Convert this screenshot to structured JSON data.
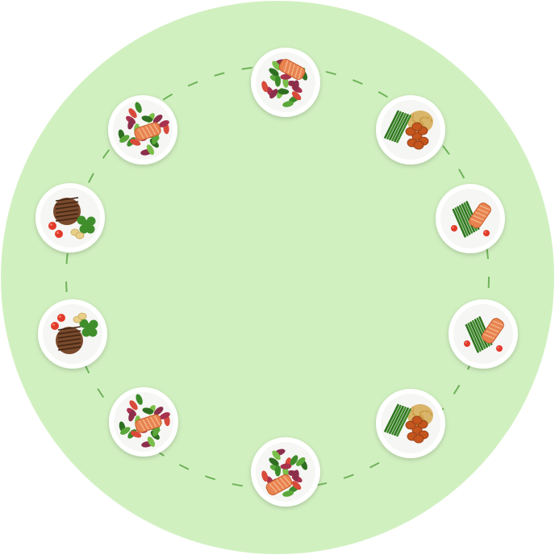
{
  "background_color": "#d1f0c0",
  "ring_dash_color": "#6fb35a",
  "plates": [
    {
      "dish": "salmon-beet-salad"
    },
    {
      "dish": "chicken-rice-green-beans"
    },
    {
      "dish": "salmon-asparagus"
    },
    {
      "dish": "salmon-asparagus"
    },
    {
      "dish": "chicken-rice-green-beans"
    },
    {
      "dish": "salmon-beet-salad"
    },
    {
      "dish": "salmon-mixed-salad"
    },
    {
      "dish": "steak-broccoli-tomato"
    },
    {
      "dish": "steak-broccoli-tomato"
    },
    {
      "dish": "salmon-mixed-salad"
    }
  ]
}
